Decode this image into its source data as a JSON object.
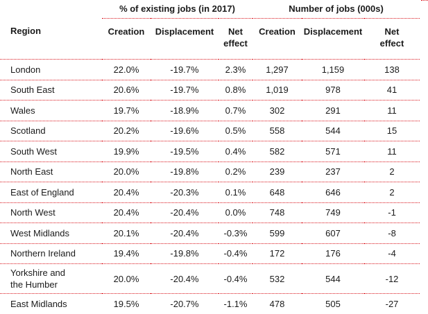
{
  "table": {
    "group_pct": "% of existing jobs (in 2017)",
    "group_num": "Number of jobs (000s)",
    "col_region": "Region",
    "col_pct_creation": "Creation",
    "col_pct_displacement": "Displacement",
    "col_pct_net_line1": "Net",
    "col_pct_net_line2": "effect",
    "col_num_creation": "Creation",
    "col_num_displacement": "Displacement",
    "col_num_net_line1": "Net",
    "col_num_net_line2": "effect",
    "rows": [
      {
        "region": "London",
        "pct_creation": "22.0%",
        "pct_displacement": "-19.7%",
        "pct_net": "2.3%",
        "num_creation": "1,297",
        "num_displacement": "1,159",
        "num_net": "138"
      },
      {
        "region": "South East",
        "pct_creation": "20.6%",
        "pct_displacement": "-19.7%",
        "pct_net": "0.8%",
        "num_creation": "1,019",
        "num_displacement": "978",
        "num_net": "41"
      },
      {
        "region": "Wales",
        "pct_creation": "19.7%",
        "pct_displacement": "-18.9%",
        "pct_net": "0.7%",
        "num_creation": "302",
        "num_displacement": "291",
        "num_net": "11"
      },
      {
        "region": "Scotland",
        "pct_creation": "20.2%",
        "pct_displacement": "-19.6%",
        "pct_net": "0.5%",
        "num_creation": "558",
        "num_displacement": "544",
        "num_net": "15"
      },
      {
        "region": "South West",
        "pct_creation": "19.9%",
        "pct_displacement": "-19.5%",
        "pct_net": "0.4%",
        "num_creation": "582",
        "num_displacement": "571",
        "num_net": "11"
      },
      {
        "region": "North East",
        "pct_creation": "20.0%",
        "pct_displacement": "-19.8%",
        "pct_net": "0.2%",
        "num_creation": "239",
        "num_displacement": "237",
        "num_net": "2"
      },
      {
        "region": "East of England",
        "pct_creation": "20.4%",
        "pct_displacement": "-20.3%",
        "pct_net": "0.1%",
        "num_creation": "648",
        "num_displacement": "646",
        "num_net": "2"
      },
      {
        "region": "North West",
        "pct_creation": "20.4%",
        "pct_displacement": "-20.4%",
        "pct_net": "0.0%",
        "num_creation": "748",
        "num_displacement": "749",
        "num_net": "-1"
      },
      {
        "region": "West Midlands",
        "pct_creation": "20.1%",
        "pct_displacement": "-20.4%",
        "pct_net": "-0.3%",
        "num_creation": "599",
        "num_displacement": "607",
        "num_net": "-8"
      },
      {
        "region": "Northern Ireland",
        "pct_creation": "19.4%",
        "pct_displacement": "-19.8%",
        "pct_net": "-0.4%",
        "num_creation": "172",
        "num_displacement": "176",
        "num_net": "-4"
      },
      {
        "region_line1": "Yorkshire and",
        "region_line2": "the Humber",
        "pct_creation": "20.0%",
        "pct_displacement": "-20.4%",
        "pct_net": "-0.4%",
        "num_creation": "532",
        "num_displacement": "544",
        "num_net": "-12"
      },
      {
        "region": "East Midlands",
        "pct_creation": "19.5%",
        "pct_displacement": "-20.7%",
        "pct_net": "-1.1%",
        "num_creation": "478",
        "num_displacement": "505",
        "num_net": "-27"
      }
    ]
  },
  "colors": {
    "rule": "#d9121a",
    "text": "#1a1a1a"
  }
}
